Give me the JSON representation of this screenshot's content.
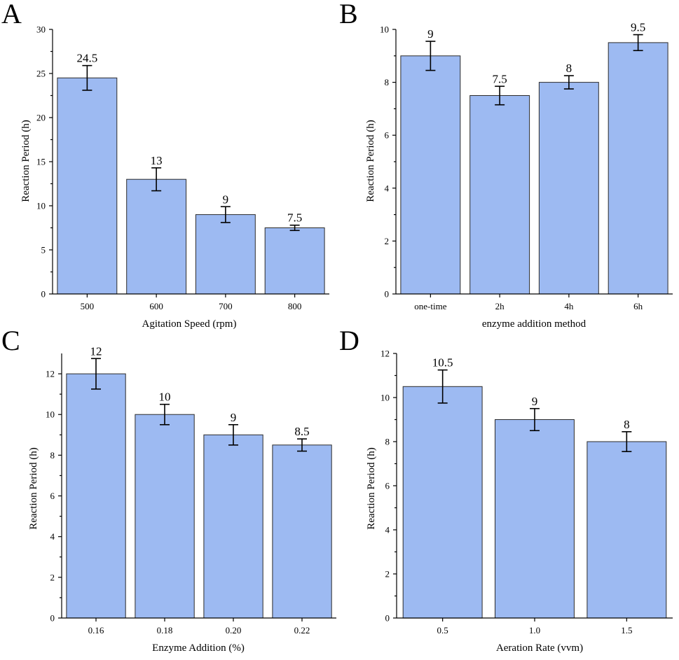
{
  "figure": {
    "panels_letters": [
      "A",
      "B",
      "C",
      "D"
    ]
  },
  "colors": {
    "bar_fill": "#9dbaf2",
    "bar_stroke": "#2b2b2b",
    "axis": "#000000"
  },
  "chart_data": [
    {
      "panel": "A",
      "type": "bar",
      "categories": [
        "500",
        "600",
        "700",
        "800"
      ],
      "values": [
        24.5,
        13,
        9,
        7.5
      ],
      "errors": [
        1.4,
        1.3,
        0.9,
        0.3
      ],
      "data_labels": [
        "24.5",
        "13",
        "9",
        "7.5"
      ],
      "title": "",
      "xlabel": "Agitation Speed (rpm)",
      "ylabel": "Reaction Period (h)",
      "ylim": [
        0,
        30
      ],
      "yticks": [
        0,
        5,
        10,
        15,
        20,
        25,
        30
      ],
      "ytick_labels": [
        "0",
        "5",
        "10",
        "15",
        "20",
        "25",
        "30"
      ],
      "grid": false
    },
    {
      "panel": "B",
      "type": "bar",
      "categories": [
        "one-time",
        "2h",
        "4h",
        "6h"
      ],
      "values": [
        9,
        7.5,
        8,
        9.5
      ],
      "errors": [
        0.55,
        0.35,
        0.25,
        0.3
      ],
      "data_labels": [
        "9",
        "7.5",
        "8",
        "9.5"
      ],
      "title": "",
      "xlabel": "enzyme addition method",
      "ylabel": "Reaction Period (h)",
      "ylim": [
        0,
        10
      ],
      "yticks": [
        0,
        2,
        4,
        6,
        8,
        10
      ],
      "ytick_labels": [
        "0",
        "2",
        "4",
        "6",
        "8",
        "10"
      ],
      "grid": false
    },
    {
      "panel": "C",
      "type": "bar",
      "categories": [
        "0.16",
        "0.18",
        "0.20",
        "0.22"
      ],
      "values": [
        12,
        10,
        9,
        8.5
      ],
      "errors": [
        0.75,
        0.5,
        0.5,
        0.3
      ],
      "data_labels": [
        "12",
        "10",
        "9",
        "8.5"
      ],
      "title": "",
      "xlabel": "Enzyme Addition (%)",
      "ylabel": "Reaction Period (h)",
      "ylim": [
        0,
        13
      ],
      "yticks": [
        0,
        2,
        4,
        6,
        8,
        10,
        12
      ],
      "ytick_labels": [
        "0",
        "2",
        "4",
        "6",
        "8",
        "10",
        "12"
      ],
      "grid": false
    },
    {
      "panel": "D",
      "type": "bar",
      "categories": [
        "0.5",
        "1.0",
        "1.5"
      ],
      "values": [
        10.5,
        9,
        8
      ],
      "errors": [
        0.75,
        0.5,
        0.45
      ],
      "data_labels": [
        "10.5",
        "9",
        "8"
      ],
      "title": "",
      "xlabel": "Aeration Rate (vvm)",
      "ylabel": "Reaction Period (h)",
      "ylim": [
        0,
        12
      ],
      "yticks": [
        0,
        2,
        4,
        6,
        8,
        10,
        12
      ],
      "ytick_labels": [
        "0",
        "2",
        "4",
        "6",
        "8",
        "10",
        "12"
      ],
      "grid": false
    }
  ]
}
